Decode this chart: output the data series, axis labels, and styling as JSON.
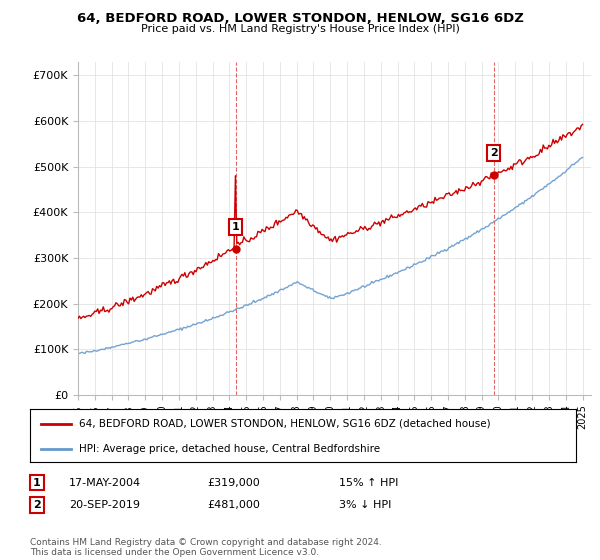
{
  "title": "64, BEDFORD ROAD, LOWER STONDON, HENLOW, SG16 6DZ",
  "subtitle": "Price paid vs. HM Land Registry's House Price Index (HPI)",
  "ylabel_ticks": [
    "£0",
    "£100K",
    "£200K",
    "£300K",
    "£400K",
    "£500K",
    "£600K",
    "£700K"
  ],
  "ytick_vals": [
    0,
    100000,
    200000,
    300000,
    400000,
    500000,
    600000,
    700000
  ],
  "ylim": [
    0,
    730000
  ],
  "xlim_start": 1995.0,
  "xlim_end": 2025.5,
  "sale1_x": 2004.38,
  "sale1_y": 319000,
  "sale1_label": "1",
  "sale1_date": "17-MAY-2004",
  "sale1_price": "£319,000",
  "sale1_hpi": "15% ↑ HPI",
  "sale2_x": 2019.72,
  "sale2_y": 481000,
  "sale2_label": "2",
  "sale2_date": "20-SEP-2019",
  "sale2_price": "£481,000",
  "sale2_hpi": "3% ↓ HPI",
  "red_line_color": "#cc0000",
  "blue_line_color": "#6699cc",
  "dashed_line_color": "#cc0000",
  "background_color": "#ffffff",
  "grid_color": "#dddddd",
  "legend_label_red": "64, BEDFORD ROAD, LOWER STONDON, HENLOW, SG16 6DZ (detached house)",
  "legend_label_blue": "HPI: Average price, detached house, Central Bedfordshire",
  "footnote": "Contains HM Land Registry data © Crown copyright and database right 2024.\nThis data is licensed under the Open Government Licence v3.0.",
  "x_tick_years": [
    1995,
    1996,
    1997,
    1998,
    1999,
    2000,
    2001,
    2002,
    2003,
    2004,
    2005,
    2006,
    2007,
    2008,
    2009,
    2010,
    2011,
    2012,
    2013,
    2014,
    2015,
    2016,
    2017,
    2018,
    2019,
    2020,
    2021,
    2022,
    2023,
    2024,
    2025
  ]
}
